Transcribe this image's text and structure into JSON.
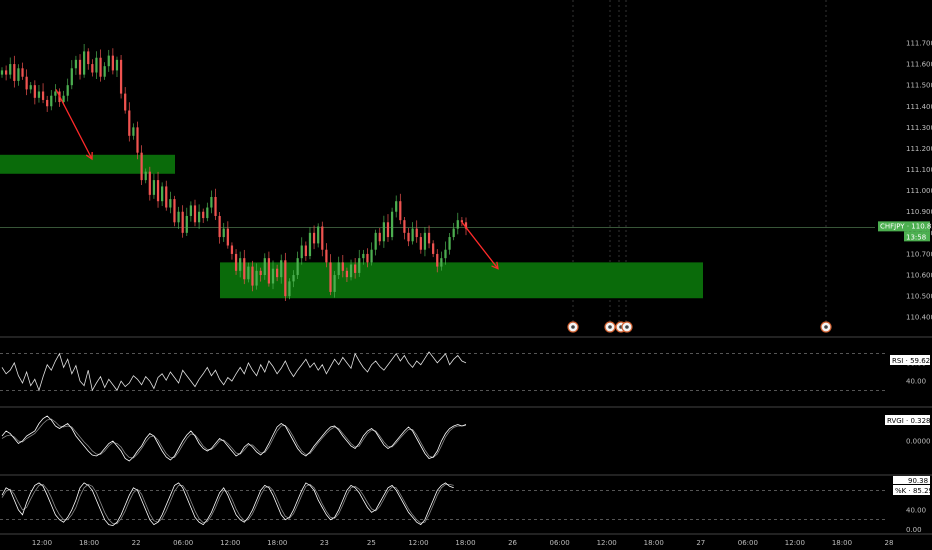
{
  "chart_data": [
    {
      "type": "candlestick",
      "symbol_label": "CHFJPY",
      "last_price": "110.826",
      "countdown": "13:58",
      "yticks": [
        "111.700",
        "111.600",
        "111.500",
        "111.400",
        "111.300",
        "111.200",
        "111.100",
        "111.000",
        "110.900",
        "110.800",
        "110.700",
        "110.600",
        "110.500",
        "110.400"
      ],
      "ylim": [
        110.33,
        111.88
      ],
      "candles_close": [
        111.57,
        111.55,
        111.6,
        111.52,
        111.58,
        111.54,
        111.48,
        111.5,
        111.44,
        111.47,
        111.43,
        111.4,
        111.45,
        111.47,
        111.42,
        111.45,
        111.5,
        111.58,
        111.62,
        111.55,
        111.66,
        111.6,
        111.56,
        111.63,
        111.54,
        111.59,
        111.64,
        111.57,
        111.62,
        111.46,
        111.38,
        111.26,
        111.3,
        111.18,
        111.05,
        111.09,
        110.98,
        111.05,
        110.95,
        111.02,
        110.92,
        110.96,
        110.85,
        110.9,
        110.8,
        110.88,
        110.93,
        110.85,
        110.9,
        110.87,
        110.92,
        110.97,
        110.88,
        110.78,
        110.82,
        110.74,
        110.7,
        110.62,
        110.68,
        110.58,
        110.64,
        110.55,
        110.62,
        110.6,
        110.68,
        110.56,
        110.63,
        110.59,
        110.67,
        110.5,
        110.57,
        110.6,
        110.68,
        110.74,
        110.69,
        110.8,
        110.75,
        110.83,
        110.72,
        110.66,
        110.52,
        110.6,
        110.66,
        110.62,
        110.59,
        110.65,
        110.61,
        110.68,
        110.7,
        110.66,
        110.72,
        110.8,
        110.76,
        110.85,
        110.78,
        110.9,
        110.95,
        110.86,
        110.8,
        110.76,
        110.82,
        110.78,
        110.72,
        110.8,
        110.75,
        110.7,
        110.64,
        110.68,
        110.72,
        110.78,
        110.82,
        110.86,
        110.85,
        110.82
      ],
      "zones": [
        {
          "y_top": 111.17,
          "y_bottom": 111.08
        },
        {
          "y_top": 110.66,
          "y_bottom": 110.49
        }
      ],
      "arrows": [
        {
          "from": [
            111.48
          ],
          "to": [
            111.15
          ]
        },
        {
          "from": [
            110.85
          ],
          "to": [
            110.63
          ]
        }
      ],
      "xticks": [
        "12:00",
        "18:00",
        "22",
        "06:00",
        "12:00",
        "18:00",
        "23",
        "25",
        "12:00",
        "18:00",
        "26",
        "06:00",
        "12:00",
        "18:00",
        "27",
        "06:00",
        "12:00",
        "18:00",
        "28"
      ]
    },
    {
      "type": "line",
      "indicator": "RSI",
      "value_label": "59.62",
      "yticks": [
        "60.00",
        "40.00"
      ],
      "ylim": [
        15,
        85
      ],
      "levels": [
        70,
        30
      ],
      "values": [
        55,
        48,
        52,
        60,
        46,
        38,
        50,
        35,
        42,
        30,
        45,
        58,
        52,
        62,
        70,
        55,
        64,
        48,
        57,
        40,
        35,
        52,
        30,
        38,
        45,
        33,
        42,
        36,
        30,
        40,
        34,
        38,
        46,
        42,
        36,
        45,
        40,
        32,
        44,
        48,
        41,
        50,
        44,
        38,
        52,
        46,
        40,
        34,
        42,
        48,
        55,
        46,
        52,
        42,
        36,
        44,
        40,
        48,
        55,
        48,
        60,
        52,
        46,
        58,
        50,
        62,
        56,
        48,
        54,
        62,
        52,
        45,
        52,
        58,
        64,
        55,
        60,
        52,
        58,
        48,
        56,
        64,
        58,
        66,
        60,
        54,
        70,
        62,
        55,
        50,
        58,
        62,
        56,
        52,
        58,
        64,
        70,
        62,
        68,
        60,
        55,
        62,
        58,
        65,
        72,
        66,
        60,
        65,
        70,
        58,
        64,
        68,
        62,
        60
      ]
    },
    {
      "type": "line",
      "indicator": "RVGI",
      "value_label": "0.3283",
      "yticks": [
        "0.0000"
      ],
      "ylim": [
        -0.62,
        0.62
      ],
      "series": [
        {
          "values": [
            0.1,
            0.2,
            0.15,
            0.05,
            -0.05,
            0.0,
            0.1,
            0.15,
            0.2,
            0.35,
            0.45,
            0.5,
            0.42,
            0.3,
            0.25,
            0.3,
            0.35,
            0.25,
            0.1,
            0.0,
            -0.1,
            -0.2,
            -0.28,
            -0.3,
            -0.25,
            -0.15,
            -0.05,
            0.0,
            -0.1,
            -0.2,
            -0.35,
            -0.4,
            -0.32,
            -0.2,
            -0.1,
            0.05,
            0.15,
            0.1,
            -0.05,
            -0.2,
            -0.32,
            -0.38,
            -0.3,
            -0.15,
            0.0,
            0.12,
            0.2,
            0.1,
            -0.05,
            -0.15,
            -0.2,
            -0.15,
            -0.05,
            0.05,
            0.0,
            -0.1,
            -0.2,
            -0.3,
            -0.25,
            -0.12,
            -0.05,
            -0.12,
            -0.22,
            -0.28,
            -0.2,
            -0.05,
            0.12,
            0.28,
            0.35,
            0.3,
            0.15,
            0.0,
            -0.15,
            -0.25,
            -0.3,
            -0.22,
            -0.1,
            0.0,
            0.1,
            0.2,
            0.28,
            0.3,
            0.22,
            0.1,
            0.0,
            -0.1,
            -0.15,
            -0.05,
            0.1,
            0.2,
            0.25,
            0.18,
            0.05,
            -0.08,
            -0.15,
            -0.1,
            0.0,
            0.1,
            0.2,
            0.28,
            0.2,
            0.05,
            -0.1,
            -0.25,
            -0.35,
            -0.32,
            -0.2,
            0.0,
            0.15,
            0.25,
            0.3,
            0.33,
            0.3,
            0.33
          ]
        },
        {
          "values": [
            0.05,
            0.1,
            0.12,
            0.08,
            0.0,
            -0.02,
            0.05,
            0.1,
            0.15,
            0.25,
            0.35,
            0.42,
            0.44,
            0.38,
            0.3,
            0.28,
            0.3,
            0.28,
            0.18,
            0.08,
            -0.02,
            -0.1,
            -0.2,
            -0.26,
            -0.27,
            -0.2,
            -0.1,
            -0.03,
            -0.05,
            -0.12,
            -0.25,
            -0.33,
            -0.34,
            -0.26,
            -0.15,
            -0.02,
            0.08,
            0.1,
            0.02,
            -0.12,
            -0.25,
            -0.33,
            -0.33,
            -0.22,
            -0.08,
            0.05,
            0.14,
            0.12,
            0.02,
            -0.1,
            -0.17,
            -0.17,
            -0.1,
            0.0,
            0.02,
            -0.05,
            -0.14,
            -0.24,
            -0.26,
            -0.18,
            -0.08,
            -0.08,
            -0.16,
            -0.24,
            -0.23,
            -0.12,
            0.04,
            0.2,
            0.3,
            0.31,
            0.22,
            0.08,
            -0.08,
            -0.2,
            -0.27,
            -0.25,
            -0.15,
            -0.04,
            0.06,
            0.15,
            0.23,
            0.28,
            0.25,
            0.15,
            0.05,
            -0.05,
            -0.12,
            -0.1,
            0.03,
            0.15,
            0.22,
            0.2,
            0.1,
            -0.02,
            -0.11,
            -0.12,
            -0.04,
            0.06,
            0.15,
            0.23,
            0.23,
            0.12,
            -0.03,
            -0.18,
            -0.3,
            -0.33,
            -0.26,
            -0.1,
            0.08,
            0.2,
            0.27,
            0.3,
            0.3,
            0.31
          ]
        }
      ]
    },
    {
      "type": "line",
      "indicator": "%K",
      "value_label": "85.29",
      "signal_label": "90.38",
      "yticks": [
        "80.00",
        "40.00",
        "0.00"
      ],
      "ylim": [
        -5,
        105
      ],
      "levels": [
        80,
        20
      ],
      "series": [
        {
          "values": [
            70,
            85,
            80,
            60,
            40,
            30,
            55,
            75,
            90,
            95,
            88,
            70,
            50,
            30,
            20,
            15,
            25,
            40,
            60,
            85,
            95,
            90,
            80,
            60,
            40,
            20,
            10,
            8,
            15,
            30,
            50,
            70,
            85,
            80,
            60,
            40,
            20,
            10,
            15,
            30,
            50,
            70,
            90,
            95,
            85,
            65,
            45,
            25,
            15,
            10,
            20,
            35,
            55,
            75,
            85,
            70,
            50,
            30,
            20,
            15,
            25,
            40,
            60,
            80,
            90,
            85,
            70,
            50,
            30,
            20,
            25,
            40,
            60,
            80,
            95,
            90,
            80,
            60,
            45,
            30,
            20,
            25,
            40,
            60,
            80,
            90,
            85,
            75,
            60,
            45,
            35,
            40,
            55,
            70,
            85,
            90,
            80,
            65,
            50,
            35,
            25,
            15,
            10,
            20,
            40,
            60,
            80,
            90,
            95,
            88,
            85
          ]
        },
        {
          "values": [
            65,
            78,
            82,
            72,
            55,
            40,
            45,
            62,
            78,
            90,
            92,
            82,
            65,
            45,
            30,
            20,
            20,
            30,
            45,
            68,
            85,
            92,
            88,
            75,
            55,
            35,
            20,
            12,
            12,
            22,
            38,
            58,
            75,
            82,
            72,
            52,
            32,
            18,
            15,
            22,
            38,
            58,
            78,
            90,
            90,
            78,
            58,
            38,
            22,
            14,
            16,
            28,
            45,
            65,
            80,
            78,
            62,
            42,
            27,
            18,
            20,
            32,
            50,
            70,
            85,
            88,
            80,
            62,
            42,
            27,
            23,
            32,
            50,
            70,
            88,
            92,
            85,
            70,
            52,
            37,
            25,
            23,
            32,
            50,
            70,
            85,
            88,
            82,
            70,
            55,
            42,
            38,
            47,
            62,
            78,
            87,
            85,
            72,
            57,
            42,
            30,
            20,
            13,
            15,
            30,
            50,
            70,
            85,
            92,
            92,
            90
          ]
        }
      ]
    }
  ]
}
